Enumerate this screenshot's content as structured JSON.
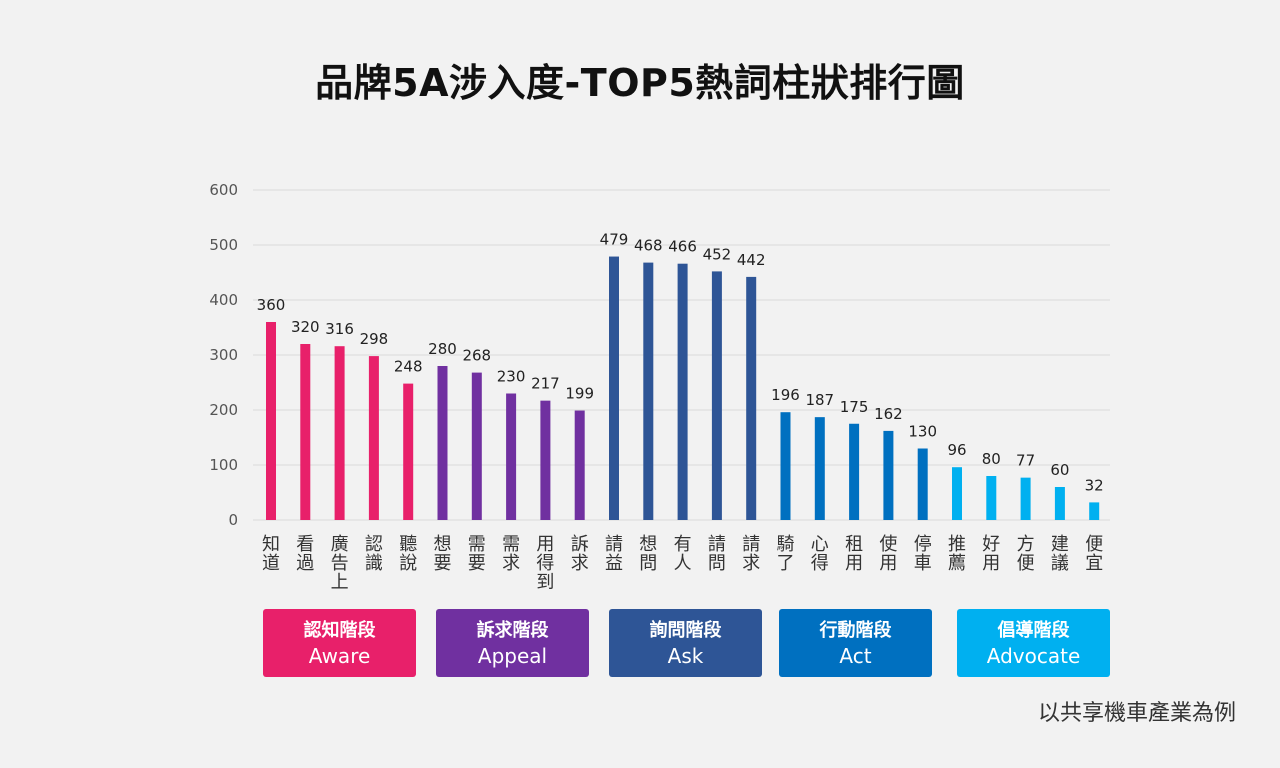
{
  "title": "品牌5A涉入度-TOP5熱詞柱狀排行圖",
  "chart_data": {
    "type": "bar",
    "ylim": [
      0,
      600
    ],
    "yticks": [
      0,
      100,
      200,
      300,
      400,
      500,
      600
    ],
    "grid": true,
    "categories": [
      "知道",
      "看過",
      "廣告上",
      "認識",
      "聽說",
      "想要",
      "需要",
      "需求",
      "用得到",
      "訴求",
      "請益",
      "想問",
      "有人",
      "請問",
      "請求",
      "騎了",
      "心得",
      "租用",
      "使用",
      "停車",
      "推薦",
      "好用",
      "方便",
      "建議",
      "便宜"
    ],
    "values": [
      360,
      320,
      316,
      298,
      248,
      280,
      268,
      230,
      217,
      199,
      479,
      468,
      466,
      452,
      442,
      196,
      187,
      175,
      162,
      130,
      96,
      80,
      77,
      60,
      32
    ],
    "stage_colors": [
      "#e8206a",
      "#7030a0",
      "#2e5596",
      "#0070c0",
      "#00b0f0"
    ]
  },
  "stages": [
    {
      "zh": "認知階段",
      "en": "Aware",
      "color": "#e8206a"
    },
    {
      "zh": "訴求階段",
      "en": "Appeal",
      "color": "#7030a0"
    },
    {
      "zh": "詢問階段",
      "en": "Ask",
      "color": "#2e5596"
    },
    {
      "zh": "行動階段",
      "en": "Act",
      "color": "#0070c0"
    },
    {
      "zh": "倡導階段",
      "en": "Advocate",
      "color": "#00b0f0"
    }
  ],
  "footnote": "以共享機車產業為例"
}
